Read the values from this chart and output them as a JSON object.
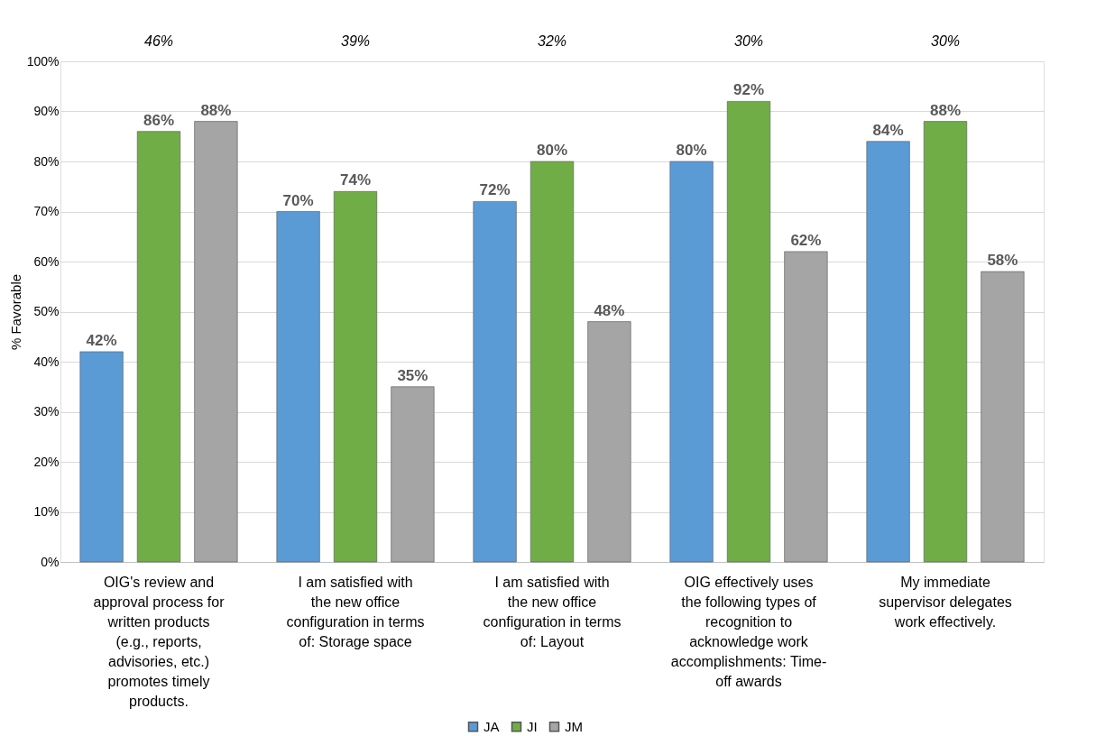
{
  "chart_data": {
    "type": "bar",
    "ylabel": "% Favorable",
    "categories": [
      "OIG's review and approval process for written products (e.g., reports, advisories, etc.) promotes timely products.",
      "I am satisfied with the new office configuration in terms of: Storage space",
      "I am satisfied with the new office configuration in terms of: Layout",
      "OIG effectively uses the following types of recognition to acknowledge work accomplishments: Time-off awards",
      "My immediate supervisor delegates work effectively."
    ],
    "series": [
      {
        "name": "JA",
        "color": "#5b9bd5",
        "values": [
          42,
          70,
          72,
          80,
          84
        ],
        "value_labels": [
          "42%",
          "70%",
          "72%",
          "80%",
          "84%"
        ]
      },
      {
        "name": "JI",
        "color": "#70ad47",
        "values": [
          86,
          74,
          80,
          92,
          88
        ],
        "value_labels": [
          "86%",
          "74%",
          "80%",
          "92%",
          "88%"
        ]
      },
      {
        "name": "JM",
        "color": "#a5a5a5",
        "values": [
          88,
          35,
          48,
          62,
          58
        ],
        "value_labels": [
          "88%",
          "35%",
          "48%",
          "62%",
          "58%"
        ]
      }
    ],
    "ylim": [
      0,
      100
    ],
    "yticks": [
      {
        "value": 0,
        "label": "0%"
      },
      {
        "value": 10,
        "label": "10%"
      },
      {
        "value": 20,
        "label": "20%"
      },
      {
        "value": 30,
        "label": "30%"
      },
      {
        "value": 40,
        "label": "40%"
      },
      {
        "value": 50,
        "label": "50%"
      },
      {
        "value": 60,
        "label": "60%"
      },
      {
        "value": 70,
        "label": "70%"
      },
      {
        "value": 80,
        "label": "80%"
      },
      {
        "value": 90,
        "label": "90%"
      },
      {
        "value": 100,
        "label": "100%"
      }
    ],
    "annotations": [
      "46%",
      "39%",
      "32%",
      "30%",
      "30%"
    ],
    "grid": "y",
    "legend": "bottom"
  }
}
